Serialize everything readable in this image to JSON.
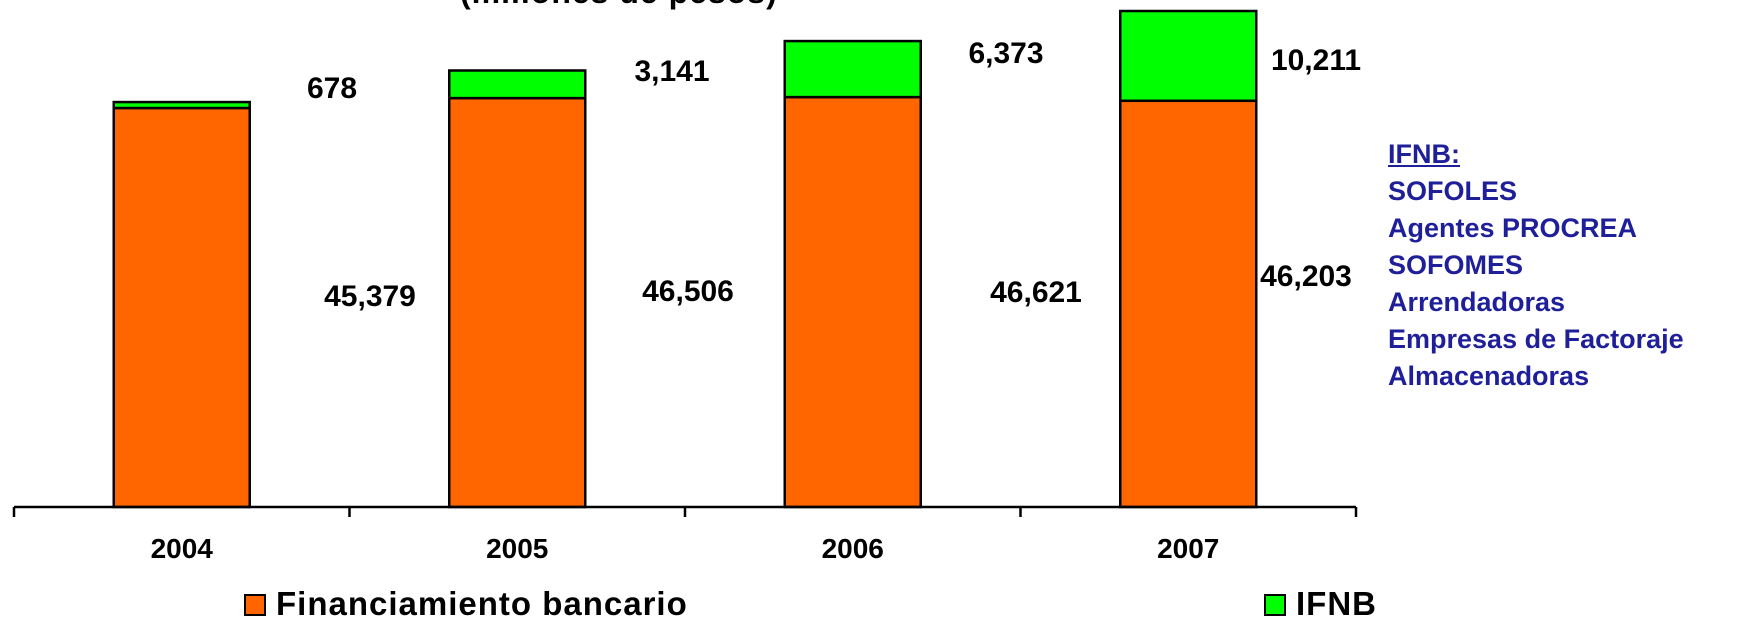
{
  "chart_data": {
    "type": "bar",
    "stacked": true,
    "title_fragment": "(millones de pesos)",
    "categories": [
      "2004",
      "2005",
      "2006",
      "2007"
    ],
    "series": [
      {
        "name": "Financiamiento bancario",
        "color": "#ff6600",
        "values": [
          45379,
          46506,
          46621,
          46203
        ],
        "labels": [
          "45,379",
          "46,506",
          "46,621",
          "46,203"
        ]
      },
      {
        "name": "IFNB",
        "color": "#00ff00",
        "values": [
          678,
          3141,
          6373,
          10211
        ],
        "labels": [
          "678",
          "3,141",
          "6,373",
          "10,211"
        ]
      }
    ],
    "ylim": [
      0,
      56414
    ],
    "grid": false,
    "legend_placement": "bottom"
  },
  "side_panel": {
    "heading": "IFNB:",
    "items": [
      "SOFOLES",
      "Agentes PROCREA",
      "SOFOMES",
      "Arrendadoras",
      "Empresas de Factoraje",
      "Almacenadoras"
    ]
  },
  "colors": {
    "side_panel_text": "#1f1f99"
  }
}
